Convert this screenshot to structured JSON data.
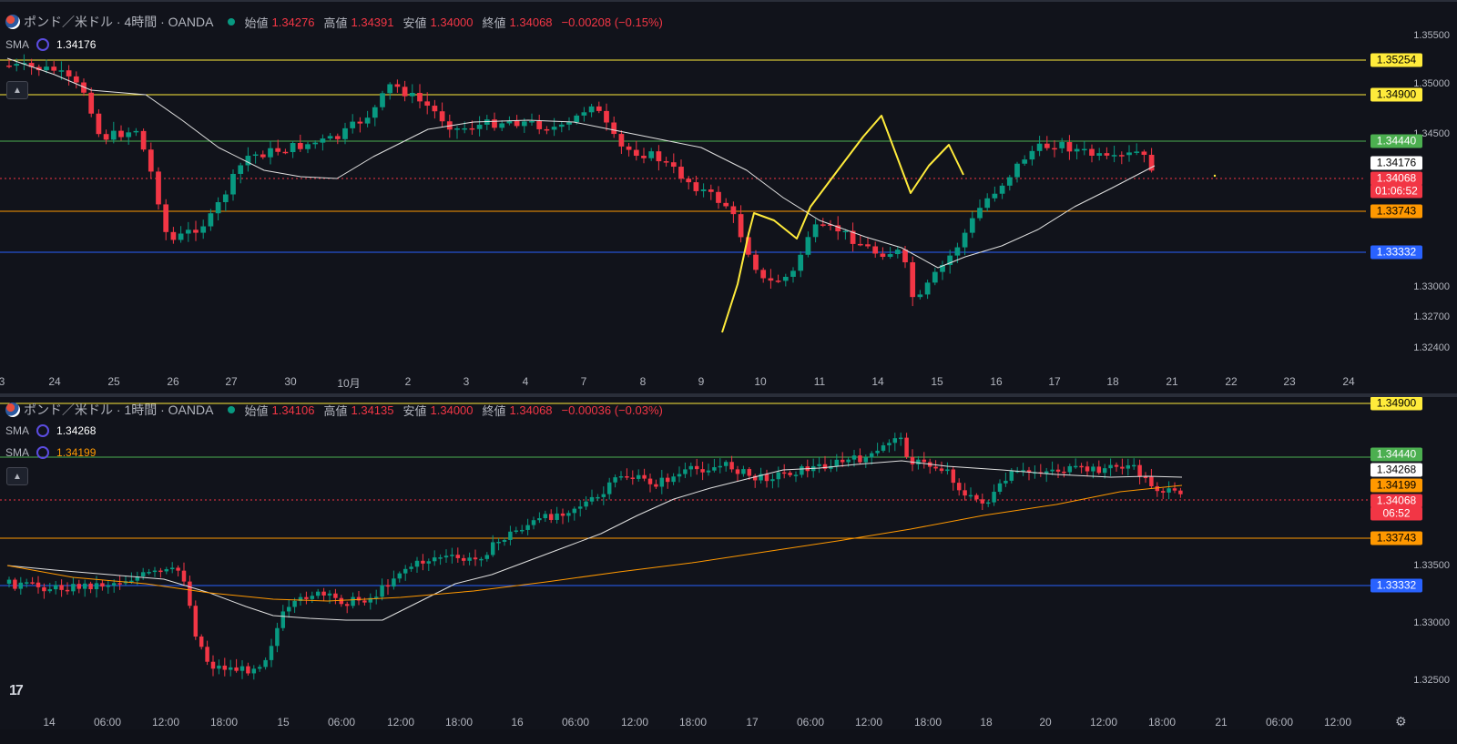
{
  "top": {
    "symbol": "ポンド／米ドル · 4時間 · OANDA",
    "open_label": "始値",
    "open": "1.34276",
    "high_label": "高値",
    "high": "1.34391",
    "low_label": "安値",
    "low": "1.34000",
    "close_label": "終値",
    "close": "1.34068",
    "change": "−0.00208 (−0.15%)",
    "sma_label": "SMA",
    "sma_value": "1.34176",
    "y_ticks": [
      "1.35500",
      "1.35000",
      "1.34500",
      "1.33000",
      "1.32700",
      "1.32400"
    ],
    "x_ticks": [
      "3",
      "24",
      "25",
      "26",
      "27",
      "30",
      "10月",
      "2",
      "3",
      "4",
      "7",
      "8",
      "9",
      "10",
      "11",
      "14",
      "15",
      "16",
      "17",
      "18",
      "21",
      "22",
      "23",
      "24"
    ],
    "price_tags": [
      {
        "text": "1.35254",
        "bg": "#ffeb3b",
        "fg": "#000000"
      },
      {
        "text": "1.34900",
        "bg": "#ffeb3b",
        "fg": "#000000"
      },
      {
        "text": "1.34440",
        "bg": "#4caf50",
        "fg": "#ffffff"
      },
      {
        "text": "1.34176",
        "bg": "#ffffff",
        "fg": "#000000"
      },
      {
        "text": "1.34068",
        "bg": "#f23645",
        "fg": "#ffffff"
      },
      {
        "text": "01:06:52",
        "bg": "#f23645",
        "fg": "#ffffff"
      },
      {
        "text": "1.33743",
        "bg": "#ff9800",
        "fg": "#000000"
      },
      {
        "text": "1.33332",
        "bg": "#2962ff",
        "fg": "#ffffff"
      }
    ]
  },
  "bottom": {
    "symbol": "ポンド／米ドル · 1時間 · OANDA",
    "open_label": "始値",
    "open": "1.34106",
    "high_label": "高値",
    "high": "1.34135",
    "low_label": "安値",
    "low": "1.34000",
    "close_label": "終値",
    "close": "1.34068",
    "change": "−0.00036 (−0.03%)",
    "sma1_label": "SMA",
    "sma1_value": "1.34268",
    "sma2_label": "SMA",
    "sma2_value": "1.34199",
    "y_ticks": [
      "1.33500",
      "1.33000",
      "1.32500"
    ],
    "x_ticks": [
      "14",
      "06:00",
      "12:00",
      "18:00",
      "15",
      "06:00",
      "12:00",
      "18:00",
      "16",
      "06:00",
      "12:00",
      "18:00",
      "17",
      "06:00",
      "12:00",
      "18:00",
      "18",
      "20",
      "12:00",
      "18:00",
      "21",
      "06:00",
      "12:00"
    ],
    "price_tags": [
      {
        "text": "1.34900",
        "bg": "#ffeb3b",
        "fg": "#000000"
      },
      {
        "text": "1.34440",
        "bg": "#4caf50",
        "fg": "#ffffff"
      },
      {
        "text": "1.34268",
        "bg": "#ffffff",
        "fg": "#000000"
      },
      {
        "text": "1.34199",
        "bg": "#ff9800",
        "fg": "#000000"
      },
      {
        "text": "1.34068",
        "bg": "#f23645",
        "fg": "#ffffff"
      },
      {
        "text": "06:52",
        "bg": "#f23645",
        "fg": "#ffffff"
      },
      {
        "text": "1.33743",
        "bg": "#ff9800",
        "fg": "#000000"
      },
      {
        "text": "1.33332",
        "bg": "#2962ff",
        "fg": "#ffffff"
      }
    ]
  },
  "colors": {
    "up": "#089981",
    "down": "#f23645",
    "yellow": "#ffeb3b",
    "green": "#4caf50",
    "orange": "#ff9800",
    "blue": "#2962ff",
    "sma_white": "#e0e0e0"
  },
  "icons": {
    "collapse": "chevron-up-icon",
    "settings": "gear-icon",
    "logo": "tradingview-logo"
  },
  "logo_text": "17"
}
